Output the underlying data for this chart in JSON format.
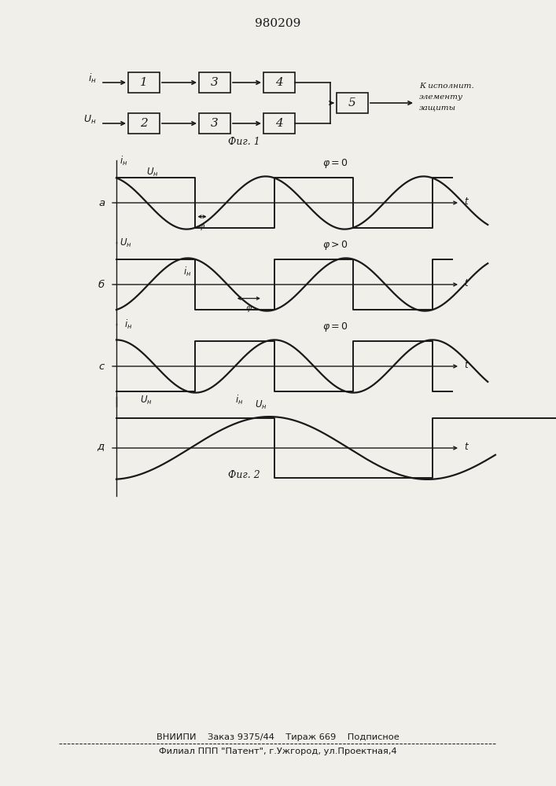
{
  "title": "980209",
  "fig1_label": "Фиг. 1",
  "fig2_label": "Фиг. 2",
  "bottom_text1": "ВНИИПИ    Заказ 9375/44    Тираж 669    Подписное",
  "bottom_text2": "Филиал ППП \"Патент\", г.Ужгород, ул.Проектная,4",
  "output_label": "К исполнит.\nэлементу\nзащиты",
  "bg_color": "#f0efea",
  "line_color": "#1a1a1a"
}
